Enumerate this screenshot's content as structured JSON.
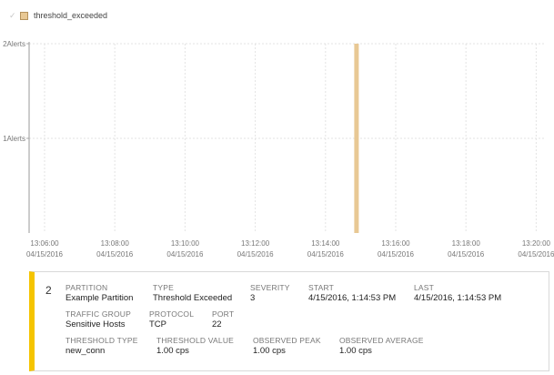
{
  "legend": {
    "check_icon": "✓",
    "label": "threshold_exceeded",
    "color": "#e8c894"
  },
  "chart_data": {
    "type": "bar",
    "y_ticks": [
      "1Alerts",
      "2Alerts"
    ],
    "ylim": [
      0,
      2
    ],
    "x_ticks": [
      {
        "time": "13:06:00",
        "date": "04/15/2016"
      },
      {
        "time": "13:08:00",
        "date": "04/15/2016"
      },
      {
        "time": "13:10:00",
        "date": "04/15/2016"
      },
      {
        "time": "13:12:00",
        "date": "04/15/2016"
      },
      {
        "time": "13:14:00",
        "date": "04/15/2016"
      },
      {
        "time": "13:16:00",
        "date": "04/15/2016"
      },
      {
        "time": "13:18:00",
        "date": "04/15/2016"
      },
      {
        "time": "13:20:00",
        "date": "04/15/2016"
      }
    ],
    "series": [
      {
        "color": "#e8c894",
        "points": [
          {
            "x": "13:14:53",
            "y": 2
          }
        ]
      }
    ],
    "grid": true
  },
  "alert": {
    "count": "2",
    "status_color": "#f5c400",
    "partition_label": "PARTITION",
    "partition": "Example Partition",
    "type_label": "TYPE",
    "type": "Threshold Exceeded",
    "severity_label": "SEVERITY",
    "severity": "3",
    "start_label": "START",
    "start": "4/15/2016, 1:14:53 PM",
    "last_label": "LAST",
    "last": "4/15/2016, 1:14:53 PM",
    "traffic_group_label": "TRAFFIC GROUP",
    "traffic_group": "Sensitive Hosts",
    "protocol_label": "PROTOCOL",
    "protocol": "TCP",
    "port_label": "PORT",
    "port": "22",
    "threshold_type_label": "THRESHOLD TYPE",
    "threshold_type": "new_conn",
    "threshold_value_label": "THRESHOLD VALUE",
    "threshold_value": "1.00 cps",
    "observed_peak_label": "OBSERVED PEAK",
    "observed_peak": "1.00 cps",
    "observed_average_label": "OBSERVED AVERAGE",
    "observed_average": "1.00 cps"
  }
}
